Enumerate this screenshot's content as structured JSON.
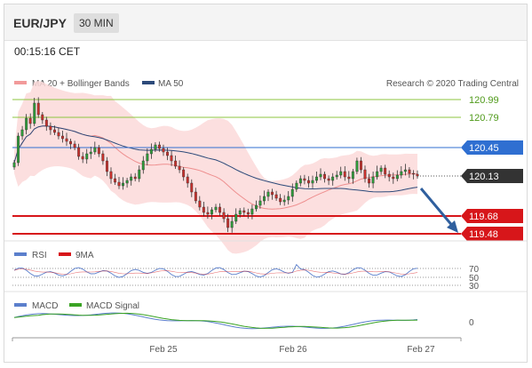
{
  "header": {
    "pair": "EUR/JPY",
    "timeframe": "30 MIN"
  },
  "timestamp": "00:15:16 CET",
  "legend": {
    "ma20": "MA 20 + Bollinger Bands",
    "ma50": "MA 50",
    "credit": "Research © 2020 Trading Central"
  },
  "rsi_legend": {
    "rsi": "RSI",
    "ma": "9MA"
  },
  "macd_legend": {
    "macd": "MACD",
    "signal": "MACD Signal"
  },
  "chart_data": {
    "type": "candlestick",
    "y_range": [
      119.41,
      121.07
    ],
    "levels": [
      {
        "value": "120.99",
        "kind": "resistance",
        "color": "#8dc63f"
      },
      {
        "value": "120.79",
        "kind": "resistance",
        "color": "#8dc63f"
      },
      {
        "value": "120.45",
        "kind": "pivot",
        "color": "#2f6fd1"
      },
      {
        "value": "120.13",
        "kind": "last",
        "color": "#333333"
      },
      {
        "value": "119.68",
        "kind": "support",
        "color": "#d7161a"
      },
      {
        "value": "119.48",
        "kind": "support",
        "color": "#d7161a"
      }
    ],
    "x_labels": [
      "Feb 25",
      "Feb 26",
      "Feb 27"
    ],
    "forecast_arrow": "down",
    "closes": [
      120.28,
      120.58,
      120.65,
      120.78,
      120.72,
      120.95,
      120.82,
      120.76,
      120.69,
      120.65,
      120.62,
      120.58,
      120.55,
      120.52,
      120.49,
      120.45,
      120.35,
      120.32,
      120.38,
      120.4,
      120.45,
      120.38,
      120.3,
      120.18,
      120.1,
      120.06,
      120.02,
      120.05,
      120.08,
      120.12,
      120.1,
      120.2,
      120.3,
      120.38,
      120.43,
      120.48,
      120.44,
      120.4,
      120.36,
      120.3,
      120.24,
      120.2,
      120.12,
      120.05,
      119.95,
      119.85,
      119.78,
      119.72,
      119.7,
      119.75,
      119.78,
      119.72,
      119.65,
      119.55,
      119.62,
      119.7,
      119.74,
      119.72,
      119.7,
      119.76,
      119.8,
      119.85,
      119.9,
      119.95,
      119.92,
      119.88,
      119.84,
      119.86,
      119.9,
      119.98,
      120.05,
      120.1,
      120.08,
      120.05,
      120.08,
      120.12,
      120.15,
      120.1,
      120.08,
      120.12,
      120.14,
      120.18,
      120.12,
      120.1,
      120.18,
      120.3,
      120.2,
      120.1,
      120.05,
      120.12,
      120.18,
      120.22,
      120.15,
      120.12,
      120.1,
      120.14,
      120.18,
      120.2,
      120.16,
      120.15,
      120.13
    ],
    "rsi_axis": [
      "70",
      "50",
      "30"
    ],
    "macd_axis": [
      "0"
    ]
  }
}
